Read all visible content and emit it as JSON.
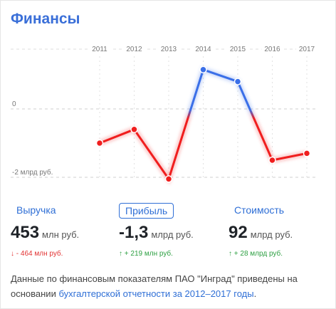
{
  "header": {
    "title": "Финансы"
  },
  "chart_data": {
    "type": "line",
    "series_metric": "Прибыль",
    "x": [
      "2011",
      "2012",
      "2013",
      "2014",
      "2015",
      "2016",
      "2017"
    ],
    "values": [
      -1.0,
      -0.6,
      -2.05,
      1.15,
      0.8,
      -1.5,
      -1.3
    ],
    "y_reference_labels": [
      {
        "value": 0,
        "label": "0"
      },
      {
        "value": -2,
        "label": "-2 млрд руб."
      }
    ],
    "ylim": [
      -2.2,
      1.6
    ],
    "positive_color": "#3a6fe8",
    "negative_color": "#f01e1e",
    "grid": "dashed horizontal at 0 and -2, dotted vertical per year"
  },
  "metrics": [
    {
      "label": "Выручка",
      "value": "453",
      "unit": "млн руб.",
      "delta_arrow": "↓",
      "delta": "- 464 млн руб.",
      "trend": "down",
      "selected": false
    },
    {
      "label": "Прибыль",
      "value": "-1,3",
      "unit": "млрд руб.",
      "delta_arrow": "↑",
      "delta": "+ 219 млн руб.",
      "trend": "up",
      "selected": true
    },
    {
      "label": "Стоимость",
      "value": "92",
      "unit": "млрд руб.",
      "delta_arrow": "↑",
      "delta": "+ 28 млрд руб.",
      "trend": "up",
      "selected": false
    }
  ],
  "footer": {
    "text": "Данные по финансовым показателям ПАО \"Инград\" приведены на основании ",
    "link_text": "бухгалтерской отчетности за 2012–2017 годы",
    "end": "."
  },
  "colors": {
    "accent": "#3a6fd8",
    "negative": "#e23333",
    "positive": "#2ea043"
  }
}
